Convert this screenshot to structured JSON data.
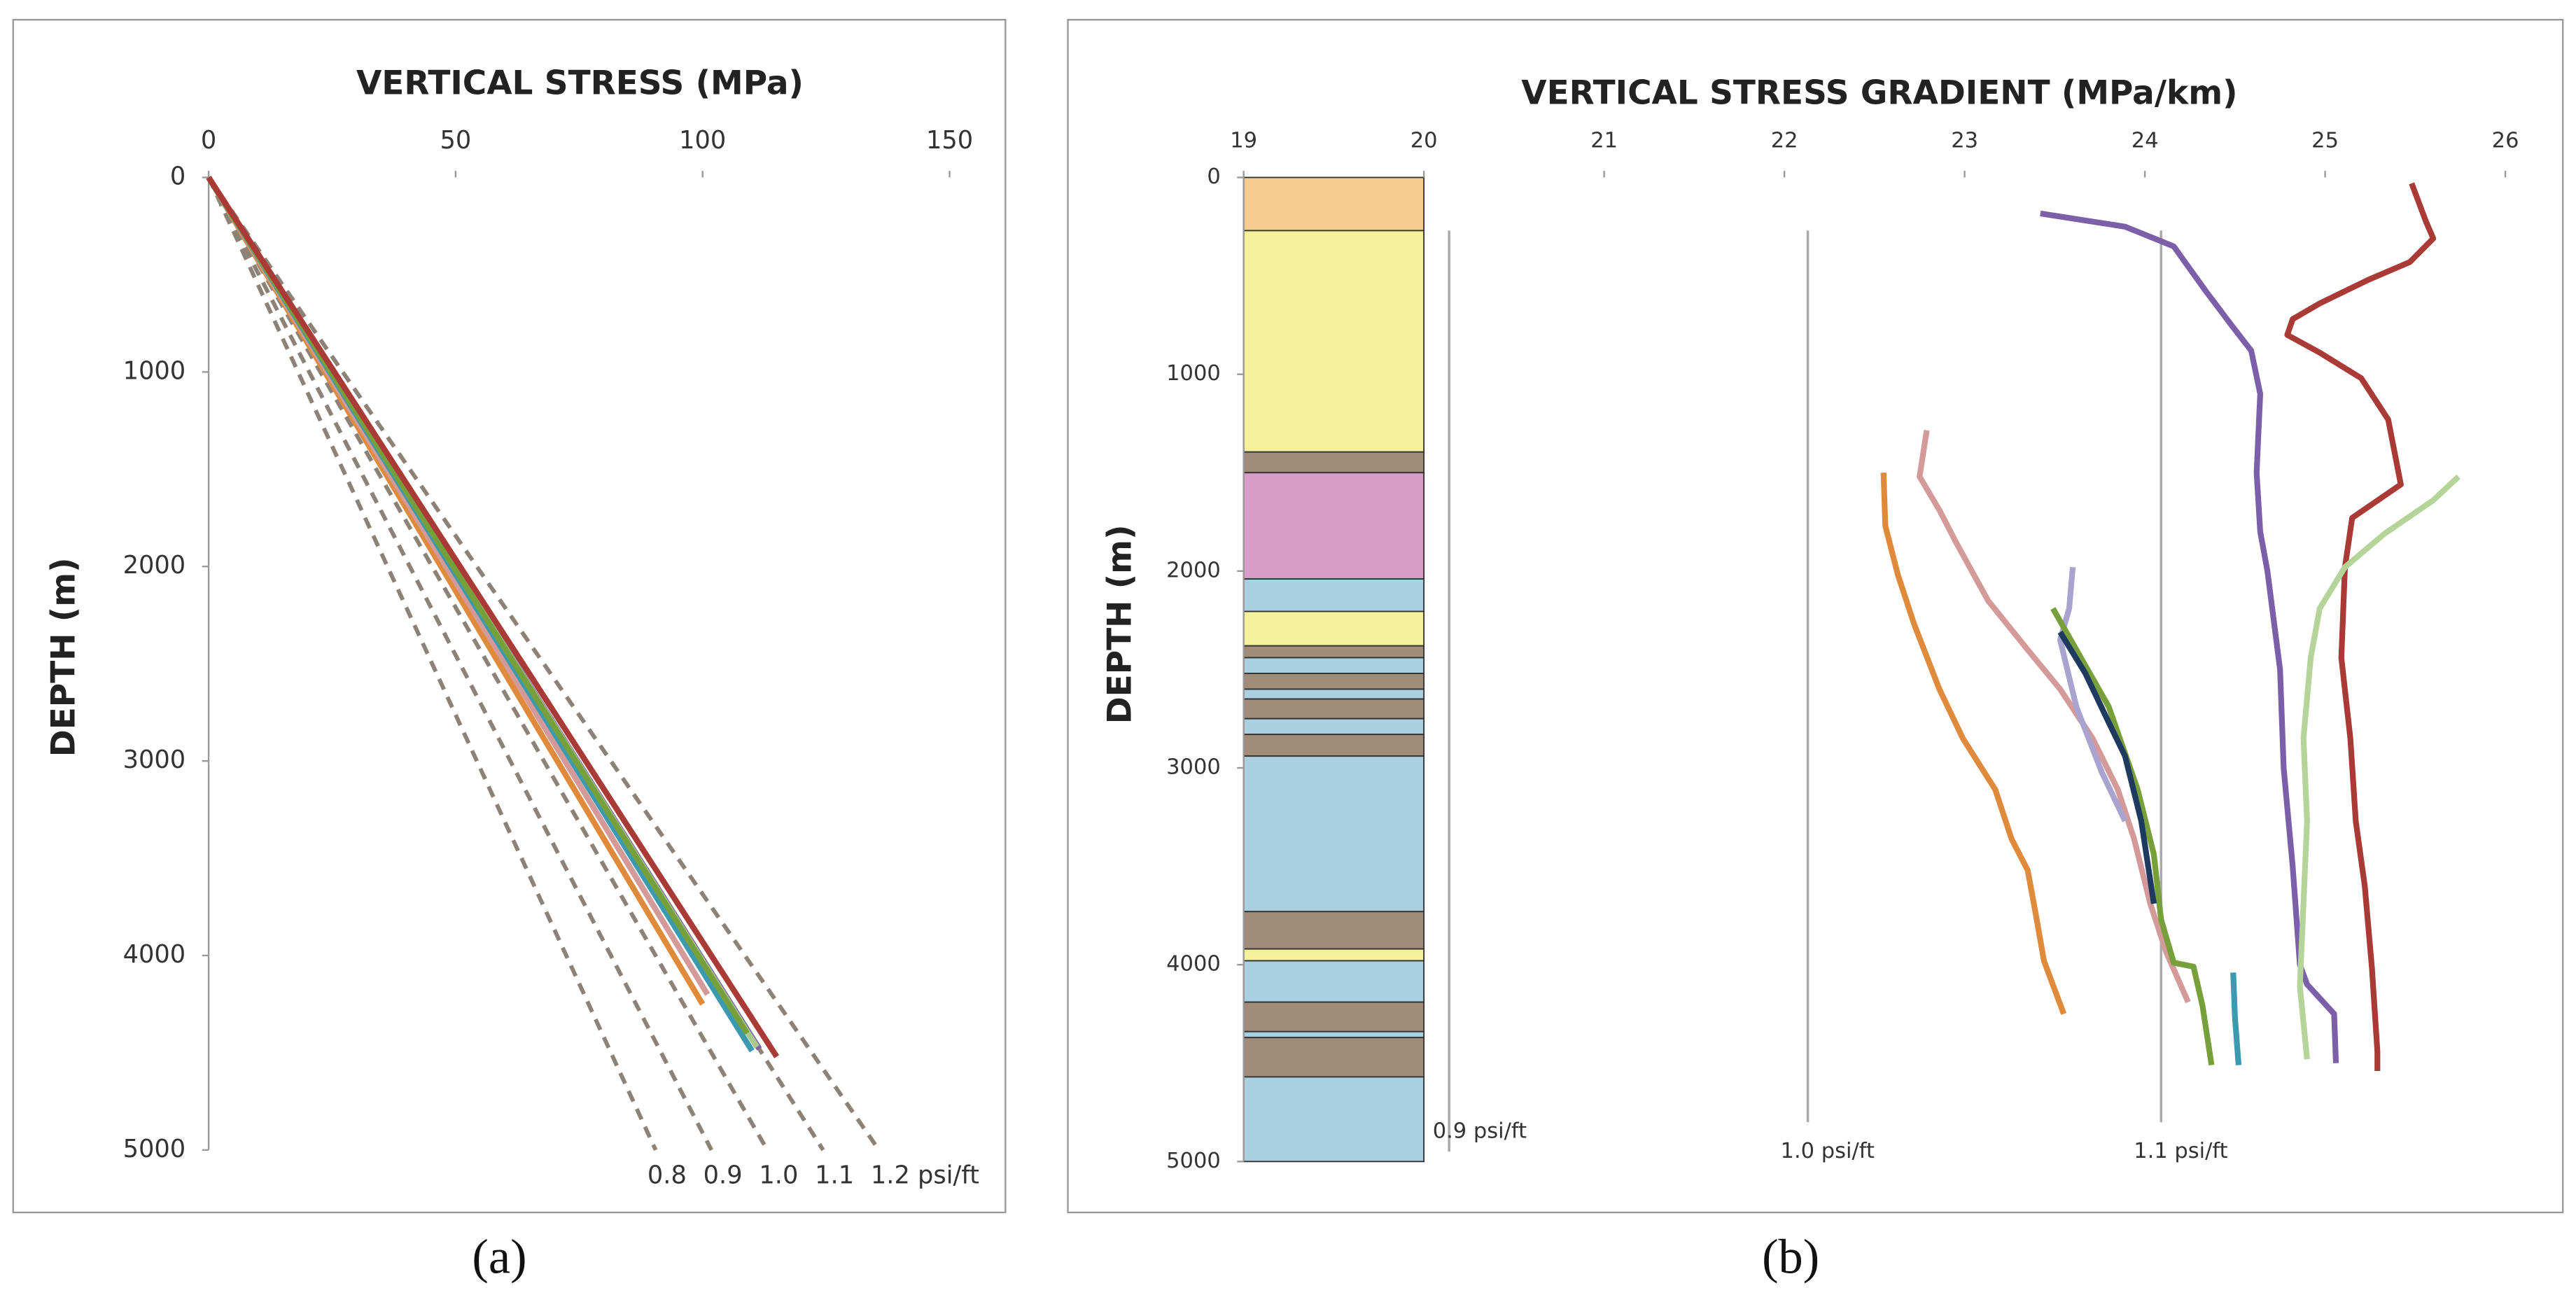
{
  "chart_data": [
    {
      "type": "line",
      "title": "VERTICAL STRESS (MPa)",
      "ylabel": "DEPTH (m)",
      "xlim": [
        0,
        150
      ],
      "xticks": [
        0,
        50,
        100,
        150
      ],
      "ylim": [
        0,
        5000
      ],
      "yticks": [
        0,
        1000,
        2000,
        3000,
        4000,
        5000
      ],
      "y_inverted": true,
      "ref_lines": [
        {
          "label": "0.8",
          "color": "#8c8277",
          "x": [
            0,
            90.5
          ],
          "y": [
            0,
            5000
          ]
        },
        {
          "label": "0.9",
          "color": "#8c8277",
          "x": [
            0,
            101.8
          ],
          "y": [
            0,
            5000
          ]
        },
        {
          "label": "1.0",
          "color": "#8c8277",
          "x": [
            0,
            113.1
          ],
          "y": [
            0,
            5000
          ]
        },
        {
          "label": "1.1",
          "color": "#8c8277",
          "x": [
            0,
            124.4
          ],
          "y": [
            0,
            5000
          ]
        },
        {
          "label": "1.2 psi/ft",
          "color": "#8c8277",
          "x": [
            0,
            135.7
          ],
          "y": [
            0,
            5000
          ]
        }
      ],
      "series": [
        {
          "color": "#e08a3c",
          "x": [
            0,
            100
          ],
          "y": [
            0,
            4250
          ]
        },
        {
          "color": "#d49a9a",
          "x": [
            0,
            101
          ],
          "y": [
            0,
            4200
          ]
        },
        {
          "color": "#7b5fa8",
          "x": [
            0,
            111.5
          ],
          "y": [
            0,
            4480
          ]
        },
        {
          "color": "#a8c88c",
          "x": [
            0,
            111
          ],
          "y": [
            0,
            4470
          ]
        },
        {
          "color": "#3b9ab0",
          "x": [
            0,
            110
          ],
          "y": [
            0,
            4490
          ]
        },
        {
          "color": "#77a03a",
          "x": [
            0,
            109
          ],
          "y": [
            0,
            4400
          ]
        },
        {
          "color": "#a93a36",
          "x": [
            0,
            115
          ],
          "y": [
            0,
            4520
          ]
        }
      ]
    },
    {
      "type": "line",
      "title": "VERTICAL STRESS GRADIENT (MPa/km)",
      "ylabel": "DEPTH (m)",
      "xlim": [
        19,
        26
      ],
      "xticks": [
        19,
        20,
        21,
        22,
        23,
        24,
        25,
        26
      ],
      "ylim": [
        0,
        5000
      ],
      "yticks": [
        0,
        1000,
        2000,
        3000,
        4000,
        5000
      ],
      "y_inverted": true,
      "lithology": [
        {
          "top": 0,
          "base": 270,
          "color": "#f8cb8e"
        },
        {
          "top": 270,
          "base": 1395,
          "color": "#f5f09a"
        },
        {
          "top": 1395,
          "base": 1500,
          "color": "#a08c78"
        },
        {
          "top": 1500,
          "base": 2040,
          "color": "#d89cc8"
        },
        {
          "top": 2040,
          "base": 2205,
          "color": "#a9cfe0"
        },
        {
          "top": 2205,
          "base": 2380,
          "color": "#f5f09a"
        },
        {
          "top": 2380,
          "base": 2440,
          "color": "#a08c78"
        },
        {
          "top": 2440,
          "base": 2520,
          "color": "#a9cfe0"
        },
        {
          "top": 2520,
          "base": 2600,
          "color": "#a08c78"
        },
        {
          "top": 2600,
          "base": 2650,
          "color": "#a9cfe0"
        },
        {
          "top": 2650,
          "base": 2750,
          "color": "#a08c78"
        },
        {
          "top": 2750,
          "base": 2830,
          "color": "#a9cfe0"
        },
        {
          "top": 2830,
          "base": 2940,
          "color": "#a08c78"
        },
        {
          "top": 2940,
          "base": 3730,
          "color": "#a9cfe0"
        },
        {
          "top": 3730,
          "base": 3920,
          "color": "#a08c78"
        },
        {
          "top": 3920,
          "base": 3980,
          "color": "#f5f09a"
        },
        {
          "top": 3980,
          "base": 4190,
          "color": "#a9cfe0"
        },
        {
          "top": 4190,
          "base": 4340,
          "color": "#a08c78"
        },
        {
          "top": 4340,
          "base": 4370,
          "color": "#a9cfe0"
        },
        {
          "top": 4370,
          "base": 4570,
          "color": "#a08c78"
        },
        {
          "top": 4570,
          "base": 5000,
          "color": "#a9cfe0"
        }
      ],
      "ref_lines": [
        {
          "label": "0.9 psi/ft",
          "color": "#aaaaaa",
          "x": [
            20.14,
            20.14
          ],
          "y": [
            270,
            4950
          ]
        },
        {
          "label": "1.0 psi/ft",
          "color": "#aaaaaa",
          "x": [
            22.13,
            22.13
          ],
          "y": [
            270,
            4800
          ]
        },
        {
          "label": "1.1 psi/ft",
          "color": "#aaaaaa",
          "x": [
            24.09,
            24.09
          ],
          "y": [
            270,
            4800
          ]
        }
      ],
      "series": [
        {
          "color": "#7b5fa8",
          "x": [
            23.42,
            23.89,
            24.16,
            24.34,
            24.48,
            24.59,
            24.64,
            24.62,
            24.64,
            24.68,
            24.75,
            24.77,
            24.82,
            24.86,
            24.9,
            25.05,
            25.06
          ],
          "y": [
            183,
            250,
            350,
            580,
            750,
            880,
            1100,
            1500,
            1800,
            2000,
            2500,
            3000,
            3500,
            4000,
            4100,
            4250,
            4500
          ]
        },
        {
          "color": "#a93a36",
          "x": [
            25.48,
            25.56,
            25.6,
            25.47,
            25.24,
            24.97,
            24.82,
            24.79,
            24.97,
            25.2,
            25.35,
            25.42,
            25.15,
            25.11,
            25.09,
            25.14,
            25.17,
            25.22,
            25.26,
            25.29,
            25.29
          ],
          "y": [
            30,
            225,
            310,
            430,
            520,
            640,
            720,
            800,
            890,
            1020,
            1230,
            1560,
            1730,
            1980,
            2440,
            2850,
            3270,
            3600,
            4020,
            4440,
            4540
          ]
        },
        {
          "color": "#b5d49a",
          "x": [
            25.74,
            25.6,
            25.33,
            25.11,
            24.97,
            24.92,
            24.88,
            24.9,
            24.88,
            24.86,
            24.9
          ],
          "y": [
            1520,
            1640,
            1810,
            1980,
            2190,
            2440,
            2850,
            3270,
            3690,
            4110,
            4480
          ]
        },
        {
          "color": "#e08a3c",
          "x": [
            22.55,
            22.56,
            22.63,
            22.72,
            22.86,
            22.99,
            23.17,
            23.26,
            23.35,
            23.4,
            23.44,
            23.55
          ],
          "y": [
            1500,
            1770,
            2020,
            2270,
            2600,
            2850,
            3110,
            3360,
            3520,
            3770,
            3980,
            4250
          ]
        },
        {
          "color": "#d49a9a",
          "x": [
            22.79,
            22.75,
            22.86,
            22.95,
            23.13,
            23.35,
            23.53,
            23.71,
            23.85,
            23.94,
            24.03,
            24.12,
            24.24
          ],
          "y": [
            1285,
            1520,
            1690,
            1850,
            2150,
            2400,
            2600,
            2850,
            3110,
            3360,
            3690,
            3940,
            4190
          ]
        },
        {
          "color": "#a9a4cf",
          "x": [
            23.6,
            23.58,
            23.53,
            23.62,
            23.76,
            23.89
          ],
          "y": [
            1980,
            2190,
            2350,
            2690,
            3020,
            3270
          ]
        },
        {
          "color": "#77a03a",
          "x": [
            23.49,
            23.62,
            23.8,
            23.96,
            24.05,
            24.09,
            24.16,
            24.27,
            24.32,
            24.37
          ],
          "y": [
            2190,
            2400,
            2690,
            3110,
            3440,
            3770,
            3990,
            4010,
            4210,
            4510
          ]
        },
        {
          "color": "#1f3a5f",
          "x": [
            23.53,
            23.67,
            23.8,
            23.89,
            23.98,
            24.05
          ],
          "y": [
            2310,
            2520,
            2770,
            2940,
            3270,
            3690
          ]
        },
        {
          "color": "#3b9ab0",
          "x": [
            24.49,
            24.5,
            24.52
          ],
          "y": [
            4040,
            4270,
            4510
          ]
        }
      ]
    }
  ],
  "captions": [
    "(a)",
    "(b)"
  ]
}
